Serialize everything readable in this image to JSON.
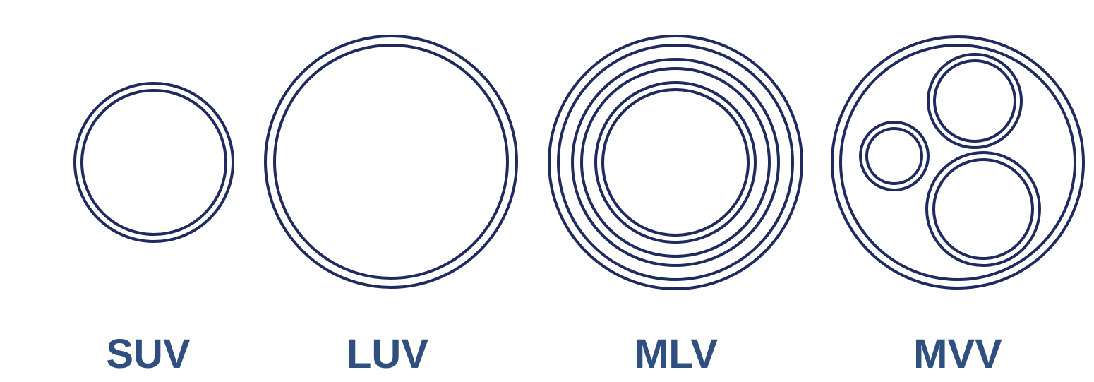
{
  "colors": {
    "stroke": "#1f2a5e",
    "label": "#2f4f7f"
  },
  "vesicles": [
    {
      "label": "SUV"
    },
    {
      "label": "LUV"
    },
    {
      "label": "MLV"
    },
    {
      "label": "MVV"
    }
  ]
}
